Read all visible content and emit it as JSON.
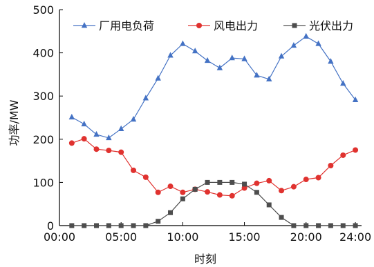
{
  "chart_data": {
    "type": "line",
    "title": "",
    "xlabel": "时刻",
    "ylabel": "功率/MW",
    "xlim": [
      0,
      24.5
    ],
    "ylim": [
      0,
      500
    ],
    "x_ticks": [
      0,
      5,
      10,
      15,
      20,
      24
    ],
    "x_tick_labels": [
      "00:00",
      "05:00",
      "10:00",
      "15:00",
      "20:00",
      "24:00"
    ],
    "y_ticks": [
      0,
      100,
      200,
      300,
      400,
      500
    ],
    "y_tick_labels": [
      "0",
      "100",
      "200",
      "300",
      "400",
      "500"
    ],
    "grid": false,
    "legend_position": "top",
    "x": [
      1,
      2,
      3,
      4,
      5,
      6,
      7,
      8,
      9,
      10,
      11,
      12,
      13,
      14,
      15,
      16,
      17,
      18,
      19,
      20,
      21,
      22,
      23,
      24
    ],
    "series": [
      {
        "name": "厂用电负荷",
        "marker": "triangle",
        "color": "#4472c4",
        "values": [
          251,
          235,
          211,
          203,
          224,
          246,
          295,
          341,
          394,
          421,
          404,
          382,
          365,
          388,
          386,
          348,
          339,
          392,
          417,
          438,
          421,
          380,
          329,
          291
        ]
      },
      {
        "name": "风电出力",
        "marker": "circle",
        "color": "#e0322f",
        "values": [
          191,
          201,
          177,
          174,
          170,
          128,
          112,
          77,
          91,
          77,
          84,
          78,
          71,
          69,
          87,
          98,
          104,
          81,
          90,
          107,
          111,
          139,
          163,
          175
        ]
      },
      {
        "name": "光伏出力",
        "marker": "square",
        "color": "#4d4d4d",
        "values": [
          0,
          0,
          0,
          0,
          0,
          0,
          0,
          10,
          30,
          62,
          84,
          100,
          100,
          100,
          96,
          77,
          48,
          19,
          0,
          0,
          0,
          0,
          0,
          0
        ]
      }
    ]
  }
}
